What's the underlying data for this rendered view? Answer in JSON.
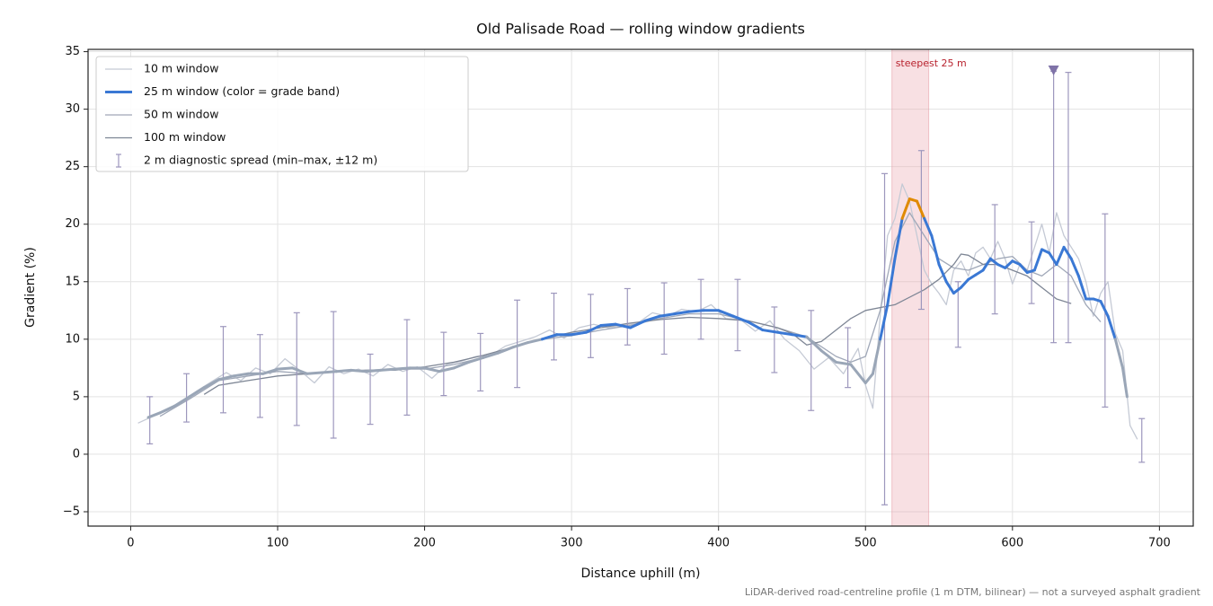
{
  "chart_data": {
    "type": "line",
    "title": "Old Palisade Road — rolling window gradients",
    "xlabel": "Distance uphill (m)",
    "ylabel": "Gradient (%)",
    "footnote": "LiDAR-derived road-centreline profile (1 m DTM, bilinear) — not a surveyed asphalt gradient",
    "xlim": [
      -29,
      723
    ],
    "ylim": [
      -6.25,
      35.2
    ],
    "xticks": [
      0,
      100,
      200,
      300,
      400,
      500,
      600,
      700
    ],
    "yticks": [
      {
        "value": -5,
        "label": "−5"
      },
      0,
      5,
      10,
      15,
      20,
      25,
      30,
      35
    ],
    "grid": true,
    "legend": "upper left",
    "highlight": {
      "x": [
        518,
        543
      ],
      "label": "steepest 25 m",
      "color": "#e8a0a8"
    },
    "max_marker": {
      "x": 628,
      "y": 33.4,
      "color": "#7f73a8"
    },
    "series": [
      {
        "name": "10 m window",
        "color": "#c5cad5",
        "x": [
          5,
          15,
          25,
          35,
          45,
          55,
          65,
          75,
          85,
          95,
          105,
          115,
          125,
          135,
          145,
          155,
          165,
          175,
          185,
          195,
          205,
          215,
          225,
          235,
          245,
          255,
          265,
          275,
          285,
          295,
          305,
          315,
          325,
          335,
          345,
          355,
          365,
          375,
          385,
          395,
          405,
          415,
          425,
          435,
          445,
          455,
          465,
          475,
          485,
          495,
          500,
          505,
          510,
          515,
          520,
          525,
          530,
          535,
          540,
          545,
          550,
          555,
          560,
          565,
          570,
          575,
          580,
          585,
          590,
          595,
          600,
          605,
          610,
          615,
          620,
          625,
          630,
          635,
          640,
          645,
          650,
          655,
          660,
          665,
          670,
          675,
          680,
          685
        ],
        "values": [
          2.7,
          3.3,
          3.8,
          4.6,
          5.5,
          6.3,
          7.1,
          6.4,
          7.5,
          7.0,
          8.3,
          7.3,
          6.2,
          7.6,
          7.0,
          7.4,
          6.8,
          7.8,
          7.2,
          7.6,
          6.6,
          7.8,
          8.1,
          8.5,
          8.6,
          9.4,
          9.8,
          10.2,
          10.8,
          10.1,
          11.0,
          11.3,
          11.0,
          11.2,
          11.4,
          12.3,
          12.0,
          12.6,
          12.4,
          13.0,
          11.8,
          11.7,
          10.7,
          11.6,
          10.0,
          9.0,
          7.4,
          8.4,
          7.0,
          9.2,
          6.0,
          4.0,
          12.0,
          19.0,
          20.5,
          23.5,
          22.0,
          19.0,
          16.0,
          14.8,
          14.0,
          13.0,
          16.0,
          16.8,
          15.5,
          17.5,
          18.0,
          17.0,
          18.5,
          17.0,
          14.8,
          16.5,
          16.0,
          18.0,
          20.0,
          17.5,
          21.0,
          19.0,
          18.0,
          17.0,
          15.0,
          12.0,
          14.0,
          15.0,
          10.5,
          9.0,
          2.5,
          1.3
        ]
      },
      {
        "name": "25 m window (color = grade band)",
        "color": "#3a78d4",
        "bands": {
          "thresholds": [
            10,
            20
          ],
          "colors": [
            "#9aa6b7",
            "#3a78d4",
            "#e08a00"
          ]
        },
        "x": [
          12,
          20,
          30,
          40,
          50,
          60,
          70,
          80,
          90,
          100,
          110,
          120,
          130,
          140,
          150,
          160,
          170,
          180,
          190,
          200,
          210,
          220,
          230,
          240,
          250,
          260,
          270,
          280,
          290,
          300,
          310,
          320,
          330,
          340,
          350,
          360,
          370,
          380,
          390,
          400,
          410,
          420,
          430,
          440,
          450,
          460,
          470,
          480,
          490,
          500,
          505,
          510,
          515,
          520,
          525,
          530,
          535,
          540,
          545,
          550,
          555,
          560,
          565,
          570,
          575,
          580,
          585,
          590,
          595,
          600,
          605,
          610,
          615,
          620,
          625,
          630,
          635,
          640,
          645,
          650,
          655,
          660,
          665,
          670,
          675,
          678
        ],
        "values": [
          3.2,
          3.6,
          4.2,
          5.0,
          5.8,
          6.5,
          6.8,
          7.0,
          7.0,
          7.4,
          7.5,
          7.0,
          7.1,
          7.2,
          7.3,
          7.2,
          7.3,
          7.4,
          7.5,
          7.5,
          7.2,
          7.5,
          8.0,
          8.4,
          8.8,
          9.3,
          9.7,
          10.0,
          10.4,
          10.4,
          10.6,
          11.2,
          11.3,
          11.0,
          11.6,
          12.0,
          12.2,
          12.4,
          12.5,
          12.5,
          12.0,
          11.5,
          10.8,
          10.6,
          10.4,
          10.2,
          9.0,
          8.0,
          7.8,
          6.2,
          7.0,
          10.0,
          13.0,
          17.0,
          20.5,
          22.2,
          22.0,
          20.5,
          19.0,
          16.5,
          15.0,
          14.0,
          14.5,
          15.2,
          15.6,
          16.0,
          17.0,
          16.5,
          16.2,
          16.8,
          16.5,
          15.8,
          16.0,
          17.8,
          17.5,
          16.5,
          18.0,
          17.0,
          15.5,
          13.5,
          13.5,
          13.3,
          12.0,
          10.0,
          7.5,
          5.0
        ]
      },
      {
        "name": "50 m window",
        "color": "#a0a8b8",
        "x": [
          20,
          40,
          60,
          80,
          100,
          120,
          140,
          160,
          180,
          200,
          220,
          240,
          260,
          280,
          300,
          320,
          340,
          360,
          380,
          400,
          420,
          440,
          460,
          480,
          490,
          500,
          510,
          520,
          530,
          540,
          550,
          560,
          570,
          580,
          590,
          600,
          610,
          620,
          630,
          640,
          650,
          660
        ],
        "values": [
          3.3,
          4.8,
          6.4,
          6.8,
          7.2,
          7.0,
          7.2,
          7.3,
          7.4,
          7.4,
          7.8,
          8.4,
          9.3,
          10.0,
          10.3,
          10.8,
          11.2,
          11.8,
          12.2,
          12.2,
          11.6,
          11.0,
          10.2,
          8.5,
          8.0,
          8.5,
          12.5,
          18.5,
          21.0,
          19.0,
          17.0,
          16.2,
          16.0,
          16.5,
          17.0,
          17.2,
          16.0,
          15.5,
          16.5,
          15.5,
          13.0,
          11.5
        ]
      },
      {
        "name": "100 m window",
        "color": "#7e8695",
        "x": [
          50,
          60,
          80,
          100,
          120,
          140,
          160,
          180,
          200,
          220,
          240,
          260,
          280,
          300,
          320,
          340,
          360,
          380,
          400,
          420,
          440,
          450,
          460,
          470,
          480,
          490,
          500,
          520,
          540,
          550,
          560,
          565,
          570,
          580,
          590,
          600,
          610,
          620,
          630,
          640
        ],
        "values": [
          5.2,
          6.0,
          6.4,
          6.8,
          7.0,
          7.2,
          7.3,
          7.3,
          7.6,
          8.0,
          8.6,
          9.3,
          10.0,
          10.6,
          11.0,
          11.4,
          11.7,
          11.9,
          11.8,
          11.6,
          11.0,
          10.5,
          9.5,
          9.8,
          10.8,
          11.8,
          12.5,
          13.0,
          14.3,
          15.2,
          16.5,
          17.4,
          17.3,
          16.5,
          16.5,
          16.0,
          15.5,
          14.5,
          13.5,
          13.1
        ]
      }
    ],
    "error_bars": {
      "name": "2 m diagnostic spread (min–max, ±12 m)",
      "color": "#9d97bd",
      "x": [
        13,
        38,
        63,
        88,
        113,
        138,
        163,
        188,
        213,
        238,
        263,
        288,
        313,
        338,
        363,
        388,
        413,
        438,
        463,
        488,
        513,
        538,
        563,
        588,
        613,
        628,
        638,
        663,
        688
      ],
      "lower": [
        0.9,
        2.8,
        3.6,
        3.2,
        2.5,
        1.4,
        2.6,
        3.4,
        5.1,
        5.5,
        5.8,
        8.2,
        8.4,
        9.5,
        8.7,
        10.0,
        9.0,
        7.1,
        3.8,
        5.8,
        -4.4,
        12.6,
        9.3,
        12.2,
        13.1,
        9.7,
        9.7,
        4.1,
        -0.7
      ],
      "upper": [
        5.0,
        7.0,
        11.1,
        10.4,
        12.3,
        12.4,
        8.7,
        11.7,
        10.6,
        10.5,
        13.4,
        14.0,
        13.9,
        14.4,
        14.9,
        15.2,
        15.2,
        12.8,
        12.5,
        11.0,
        24.4,
        26.4,
        15.0,
        21.7,
        20.2,
        33.3,
        33.2,
        20.9,
        3.1
      ]
    }
  }
}
